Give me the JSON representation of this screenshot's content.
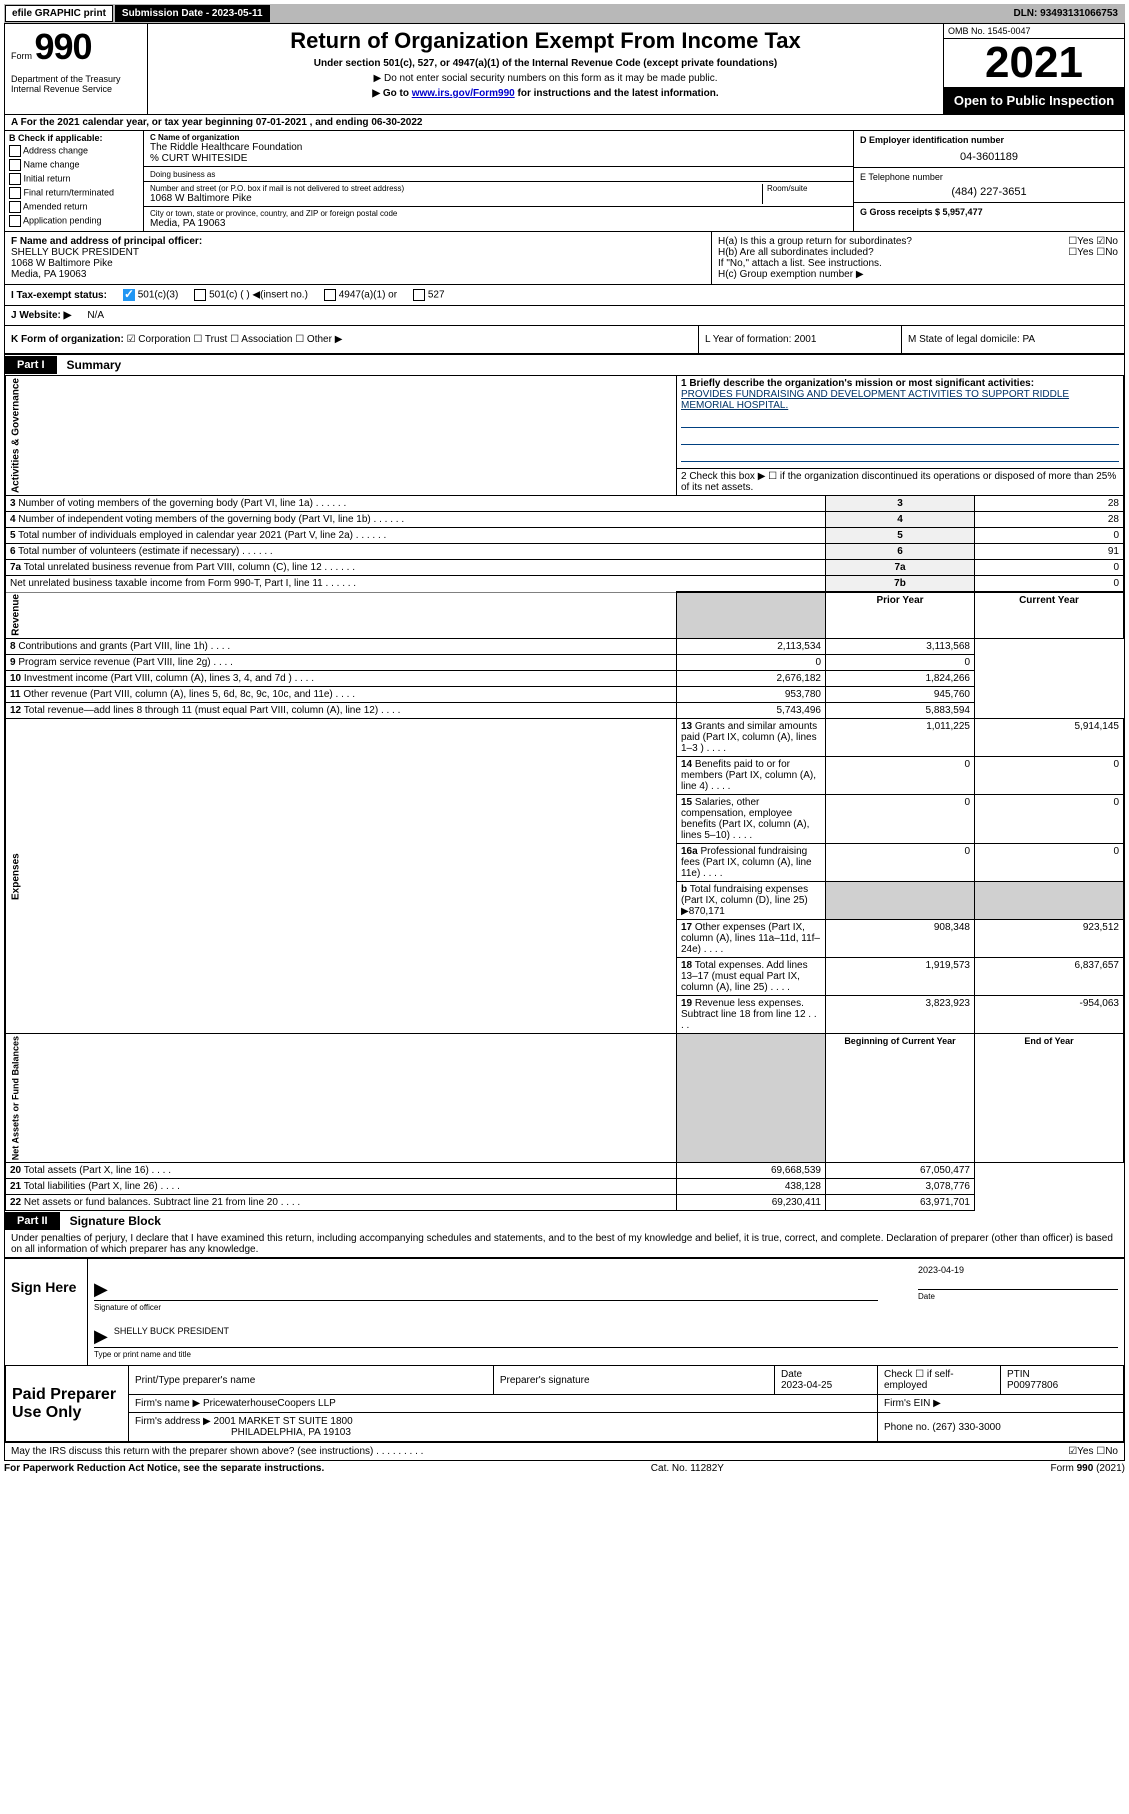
{
  "topbar": {
    "efile": "efile GRAPHIC print",
    "submission_label": "Submission Date - 2023-05-11",
    "dln": "DLN: 93493131066753"
  },
  "header": {
    "form_word": "Form",
    "form_number": "990",
    "dept": "Department of the Treasury\nInternal Revenue Service",
    "title": "Return of Organization Exempt From Income Tax",
    "subtitle": "Under section 501(c), 527, or 4947(a)(1) of the Internal Revenue Code (except private foundations)",
    "note1": "▶ Do not enter social security numbers on this form as it may be made public.",
    "note2_pre": "▶ Go to ",
    "note2_link": "www.irs.gov/Form990",
    "note2_post": " for instructions and the latest information.",
    "omb": "OMB No. 1545-0047",
    "year": "2021",
    "open": "Open to Public Inspection"
  },
  "lineA": "A For the 2021 calendar year, or tax year beginning 07-01-2021  , and ending 06-30-2022",
  "sectionB": {
    "title": "B Check if applicable:",
    "items": [
      "Address change",
      "Name change",
      "Initial return",
      "Final return/terminated",
      "Amended return",
      "Application pending"
    ],
    "c_label": "C Name of organization",
    "org_name": "The Riddle Healthcare Foundation",
    "care_of": "% CURT WHITESIDE",
    "dba_label": "Doing business as",
    "addr_label": "Number and street (or P.O. box if mail is not delivered to street address)",
    "room_label": "Room/suite",
    "addr": "1068 W Baltimore Pike",
    "city_label": "City or town, state or province, country, and ZIP or foreign postal code",
    "city": "Media, PA  19063",
    "d_label": "D Employer identification number",
    "ein": "04-3601189",
    "e_label": "E Telephone number",
    "phone": "(484) 227-3651",
    "g_label": "G Gross receipts $ 5,957,477"
  },
  "rowF": {
    "f_label": "F Name and address of principal officer:",
    "f_name": "SHELLY BUCK PRESIDENT",
    "f_addr1": "1068 W Baltimore Pike",
    "f_addr2": "Media, PA  19063",
    "ha": "H(a)  Is this a group return for subordinates?",
    "ha_ans": "☐Yes ☑No",
    "hb": "H(b)  Are all subordinates included?",
    "hb_ans": "☐Yes ☐No",
    "hb_note": "If \"No,\" attach a list. See instructions.",
    "hc": "H(c)  Group exemption number ▶"
  },
  "rowI": {
    "label": "I  Tax-exempt status:",
    "opt1": "501(c)(3)",
    "opt2": "501(c) (  ) ◀(insert no.)",
    "opt3": "4947(a)(1) or",
    "opt4": "527"
  },
  "rowJ": {
    "label": "J  Website: ▶",
    "val": "N/A"
  },
  "rowK": {
    "k": "K Form of organization:",
    "opts": "☑ Corporation ☐ Trust ☐ Association ☐ Other ▶",
    "l": "L Year of formation: 2001",
    "m": "M State of legal domicile: PA"
  },
  "part1": {
    "tab": "Part I",
    "title": "Summary",
    "q1": "1  Briefly describe the organization's mission or most significant activities:",
    "mission": "PROVIDES FUNDRAISING AND DEVELOPMENT ACTIVITIES TO SUPPORT RIDDLE MEMORIAL HOSPITAL.",
    "q2": "2  Check this box ▶ ☐  if the organization discontinued its operations or disposed of more than 25% of its net assets.",
    "lines_gov": [
      {
        "n": "3",
        "t": "Number of voting members of the governing body (Part VI, line 1a)",
        "b": "3",
        "v": "28"
      },
      {
        "n": "4",
        "t": "Number of independent voting members of the governing body (Part VI, line 1b)",
        "b": "4",
        "v": "28"
      },
      {
        "n": "5",
        "t": "Total number of individuals employed in calendar year 2021 (Part V, line 2a)",
        "b": "5",
        "v": "0"
      },
      {
        "n": "6",
        "t": "Total number of volunteers (estimate if necessary)",
        "b": "6",
        "v": "91"
      },
      {
        "n": "7a",
        "t": "Total unrelated business revenue from Part VIII, column (C), line 12",
        "b": "7a",
        "v": "0"
      },
      {
        "n": "",
        "t": "Net unrelated business taxable income from Form 990-T, Part I, line 11",
        "b": "7b",
        "v": "0"
      }
    ],
    "col_prior": "Prior Year",
    "col_curr": "Current Year",
    "revenue": [
      {
        "n": "8",
        "t": "Contributions and grants (Part VIII, line 1h)",
        "p": "2,113,534",
        "c": "3,113,568"
      },
      {
        "n": "9",
        "t": "Program service revenue (Part VIII, line 2g)",
        "p": "0",
        "c": "0"
      },
      {
        "n": "10",
        "t": "Investment income (Part VIII, column (A), lines 3, 4, and 7d )",
        "p": "2,676,182",
        "c": "1,824,266"
      },
      {
        "n": "11",
        "t": "Other revenue (Part VIII, column (A), lines 5, 6d, 8c, 9c, 10c, and 11e)",
        "p": "953,780",
        "c": "945,760"
      },
      {
        "n": "12",
        "t": "Total revenue—add lines 8 through 11 (must equal Part VIII, column (A), line 12)",
        "p": "5,743,496",
        "c": "5,883,594"
      }
    ],
    "expenses": [
      {
        "n": "13",
        "t": "Grants and similar amounts paid (Part IX, column (A), lines 1–3 )",
        "p": "1,011,225",
        "c": "5,914,145"
      },
      {
        "n": "14",
        "t": "Benefits paid to or for members (Part IX, column (A), line 4)",
        "p": "0",
        "c": "0"
      },
      {
        "n": "15",
        "t": "Salaries, other compensation, employee benefits (Part IX, column (A), lines 5–10)",
        "p": "0",
        "c": "0"
      },
      {
        "n": "16a",
        "t": "Professional fundraising fees (Part IX, column (A), line 11e)",
        "p": "0",
        "c": "0"
      },
      {
        "n": "b",
        "t": "Total fundraising expenses (Part IX, column (D), line 25) ▶870,171",
        "p": "",
        "c": "",
        "shade": true
      },
      {
        "n": "17",
        "t": "Other expenses (Part IX, column (A), lines 11a–11d, 11f–24e)",
        "p": "908,348",
        "c": "923,512"
      },
      {
        "n": "18",
        "t": "Total expenses. Add lines 13–17 (must equal Part IX, column (A), line 25)",
        "p": "1,919,573",
        "c": "6,837,657"
      },
      {
        "n": "19",
        "t": "Revenue less expenses. Subtract line 18 from line 12",
        "p": "3,823,923",
        "c": "-954,063"
      }
    ],
    "col_begin": "Beginning of Current Year",
    "col_end": "End of Year",
    "netassets": [
      {
        "n": "20",
        "t": "Total assets (Part X, line 16)",
        "p": "69,668,539",
        "c": "67,050,477"
      },
      {
        "n": "21",
        "t": "Total liabilities (Part X, line 26)",
        "p": "438,128",
        "c": "3,078,776"
      },
      {
        "n": "22",
        "t": "Net assets or fund balances. Subtract line 21 from line 20",
        "p": "69,230,411",
        "c": "63,971,701"
      }
    ],
    "side_gov": "Activities & Governance",
    "side_rev": "Revenue",
    "side_exp": "Expenses",
    "side_net": "Net Assets or Fund Balances"
  },
  "part2": {
    "tab": "Part II",
    "title": "Signature Block",
    "decl": "Under penalties of perjury, I declare that I have examined this return, including accompanying schedules and statements, and to the best of my knowledge and belief, it is true, correct, and complete. Declaration of preparer (other than officer) is based on all information of which preparer has any knowledge.",
    "sign_here": "Sign Here",
    "sig_officer": "Signature of officer",
    "sig_date": "2023-04-19",
    "date_label": "Date",
    "officer_name": "SHELLY BUCK PRESIDENT",
    "type_name": "Type or print name and title",
    "paid": "Paid Preparer Use Only",
    "h_print": "Print/Type preparer's name",
    "h_sig": "Preparer's signature",
    "h_date": "Date",
    "prep_date": "2023-04-25",
    "h_check": "Check ☐ if self-employed",
    "h_ptin": "PTIN",
    "ptin": "P00977806",
    "firm_name_l": "Firm's name    ▶",
    "firm_name": "PricewaterhouseCoopers LLP",
    "firm_ein_l": "Firm's EIN ▶",
    "firm_addr_l": "Firm's address ▶",
    "firm_addr1": "2001 MARKET ST SUITE 1800",
    "firm_addr2": "PHILADELPHIA, PA  19103",
    "firm_phone_l": "Phone no. (267) 330-3000",
    "may_irs": "May the IRS discuss this return with the preparer shown above? (see instructions)",
    "may_ans": "☑Yes ☐No"
  },
  "footer": {
    "left": "For Paperwork Reduction Act Notice, see the separate instructions.",
    "mid": "Cat. No. 11282Y",
    "right": "Form 990 (2021)"
  }
}
